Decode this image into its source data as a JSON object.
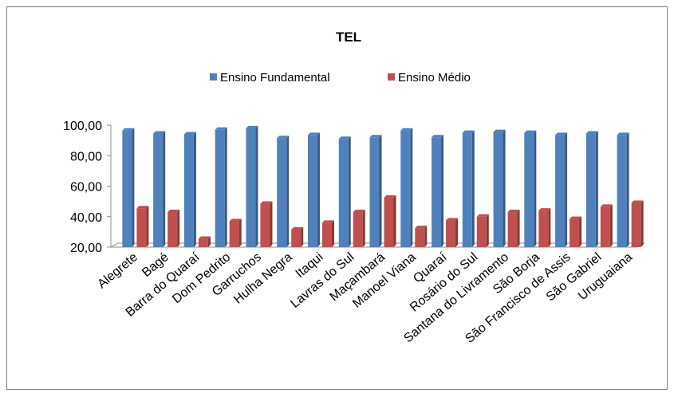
{
  "chart_data": {
    "type": "bar",
    "title": "TEL",
    "xlabel": "",
    "ylabel": "",
    "legend_position": "top",
    "grid": false,
    "ylim": [
      20,
      100
    ],
    "yticks": [
      "20,00",
      "40,00",
      "60,00",
      "80,00",
      "100,00"
    ],
    "yticks_values": [
      20,
      40,
      60,
      80,
      100
    ],
    "categories": [
      "Alegrete",
      "Bagé",
      "Barra do Quaraí",
      "Dom Pedrito",
      "Garruchos",
      "Hulha Negra",
      "Itaqui",
      "Lavras do Sul",
      "Maçambará",
      "Manoel Viana",
      "Quaraí",
      "Rosário do Sul",
      "Santana do Livramento",
      "São Borja",
      "São Francisco de Assis",
      "São Gabriel",
      "Uruguaiana"
    ],
    "series": [
      {
        "name": "Ensino Fundamental",
        "color": "#4F81BD",
        "values": [
          96.5,
          94.5,
          94.0,
          97.0,
          98.0,
          91.5,
          93.5,
          91.0,
          92.0,
          96.5,
          92.0,
          95.0,
          95.5,
          95.0,
          93.5,
          94.5,
          93.5
        ]
      },
      {
        "name": "Ensino Médio",
        "color": "#C0504D",
        "values": [
          45.5,
          43.0,
          25.5,
          37.0,
          48.5,
          31.5,
          36.0,
          43.0,
          52.5,
          32.5,
          37.5,
          40.0,
          43.0,
          44.0,
          38.5,
          46.5,
          49.0
        ]
      }
    ]
  }
}
